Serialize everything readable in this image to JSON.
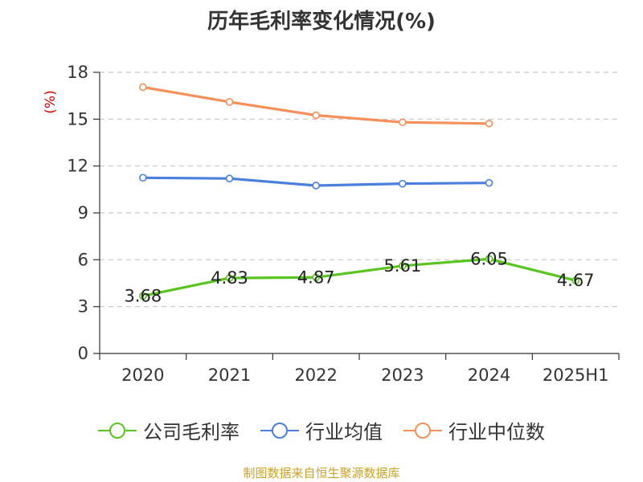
{
  "title": "历年毛利率变化情况(%)",
  "source": "制图数据来自恒生聚源数据库",
  "colors": {
    "company": "#5ac421",
    "industry_avg": "#4a7fdb",
    "industry_median": "#f5905a",
    "unit": "#cc0000",
    "source": "#c9a227",
    "grid": "#c8c8c8"
  },
  "chart_data": {
    "type": "line",
    "title": "历年毛利率变化情况(%)",
    "ylabel": "(%)",
    "xlabel": "",
    "categories": [
      "2020",
      "2021",
      "2022",
      "2023",
      "2024",
      "2025H1"
    ],
    "ylim": [
      0,
      18
    ],
    "yticks": [
      "0",
      "3",
      "6",
      "9",
      "12",
      "15",
      "18"
    ],
    "grid": true,
    "legend_position": "bottom",
    "series": [
      {
        "name": "公司毛利率",
        "color": "#5ac421",
        "values": [
          3.68,
          4.83,
          4.87,
          5.61,
          6.05,
          4.67
        ],
        "labels": [
          "3.68",
          "4.83",
          "4.87",
          "5.61",
          "6.05",
          "4.67"
        ]
      },
      {
        "name": "行业均值",
        "color": "#4a7fdb",
        "values": [
          11.25,
          11.2,
          10.75,
          10.87,
          10.92,
          null
        ]
      },
      {
        "name": "行业中位数",
        "color": "#f5905a",
        "values": [
          17.05,
          16.1,
          15.25,
          14.8,
          14.72,
          null
        ]
      }
    ]
  }
}
